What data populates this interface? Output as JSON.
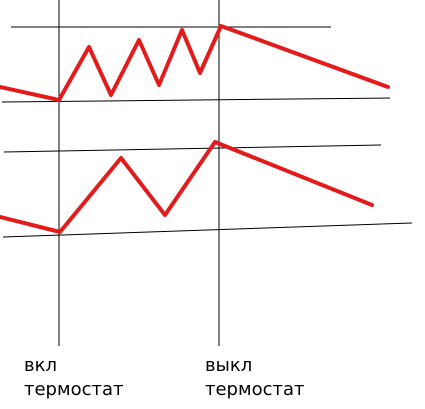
{
  "labels": {
    "on": {
      "line1": "вкл",
      "line2": "термостат"
    },
    "off": {
      "line1": "выкл",
      "line2": "термостат"
    }
  },
  "colors": {
    "signal": "#e41b1b",
    "axis": "#000000",
    "background": "#ffffff"
  }
}
